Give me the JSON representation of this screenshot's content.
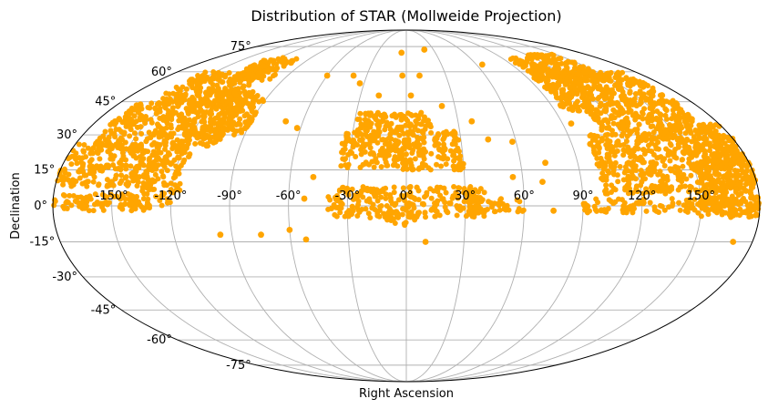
{
  "chart_data": {
    "type": "scatter",
    "projection": "mollweide",
    "title": "Distribution of STAR (Mollweide Projection)",
    "xlabel": "Right Ascension",
    "ylabel": "Declination",
    "xlim": [
      -180,
      180
    ],
    "ylim": [
      -90,
      90
    ],
    "grid": true,
    "marker_color": "#FFA500",
    "x_ticks": [
      "-150°",
      "-120°",
      "-90°",
      "-60°",
      "-30°",
      "0°",
      "30°",
      "60°",
      "90°",
      "120°",
      "150°"
    ],
    "x_tick_values": [
      -150,
      -120,
      -90,
      -60,
      -30,
      0,
      30,
      60,
      90,
      120,
      150
    ],
    "y_ticks": [
      "-75°",
      "-60°",
      "-45°",
      "-30°",
      "-15°",
      "0°",
      "15°",
      "30°",
      "45°",
      "60°",
      "75°"
    ],
    "y_tick_values": [
      -75,
      -60,
      -45,
      -30,
      -15,
      0,
      15,
      30,
      45,
      60,
      75
    ],
    "series": [
      {
        "regions": [
          {
            "ra": [
              -180,
              -120
            ],
            "dec": [
              -2,
              5
            ]
          },
          {
            "ra": [
              -180,
              -130
            ],
            "dec": [
              8,
              26
            ]
          },
          {
            "ra": [
              -170,
              -100
            ],
            "dec": [
              25,
              45
            ]
          },
          {
            "ra": [
              -160,
              -110
            ],
            "dec": [
              44,
              60
            ]
          },
          {
            "ra": [
              -130,
              -100
            ],
            "dec": [
              55,
              68
            ]
          },
          {
            "ra": [
              -135,
              -115
            ],
            "dec": [
              5,
              25
            ]
          },
          {
            "ra": [
              -122,
              -102
            ],
            "dec": [
              28,
              50
            ]
          },
          {
            "ra": [
              -105,
              -90
            ],
            "dec": [
              30,
              48
            ]
          },
          {
            "ra": [
              -35,
              30
            ],
            "dec": [
              15,
              32
            ]
          },
          {
            "ra": [
              -30,
              15
            ],
            "dec": [
              32,
              40
            ]
          },
          {
            "ra": [
              -40,
              40
            ],
            "dec": [
              -5,
              8
            ]
          },
          {
            "ra": [
              -10,
              5
            ],
            "dec": [
              -8,
              -2
            ]
          },
          {
            "ra": [
              30,
              60
            ],
            "dec": [
              -3,
              3
            ]
          },
          {
            "ra": [
              90,
              180
            ],
            "dec": [
              -3,
              3
            ]
          },
          {
            "ra": [
              100,
              180
            ],
            "dec": [
              5,
              30
            ]
          },
          {
            "ra": [
              110,
              170
            ],
            "dec": [
              30,
              60
            ]
          },
          {
            "ra": [
              120,
              150
            ],
            "dec": [
              55,
              70
            ]
          },
          {
            "ra": [
              95,
              118
            ],
            "dec": [
              40,
              68
            ]
          },
          {
            "ra": [
              150,
              180
            ],
            "dec": [
              -5,
              35
            ]
          }
        ],
        "points": [
          {
            "ra": -75,
            "dec": -12
          },
          {
            "ra": -96,
            "dec": -12
          },
          {
            "ra": 3,
            "dec": 48
          },
          {
            "ra": 10,
            "dec": 58
          },
          {
            "ra": 22,
            "dec": 43
          },
          {
            "ra": -18,
            "dec": 48
          },
          {
            "ra": 38,
            "dec": 36
          },
          {
            "ra": 45,
            "dec": 28
          },
          {
            "ra": 55,
            "dec": 12
          },
          {
            "ra": 58,
            "dec": 27
          },
          {
            "ra": 73,
            "dec": 18
          },
          {
            "ra": 70,
            "dec": 10
          },
          {
            "ra": -62,
            "dec": 33
          },
          {
            "ra": -70,
            "dec": 36
          },
          {
            "ra": -48,
            "dec": 12
          },
          {
            "ra": -60,
            "dec": -10
          },
          {
            "ra": -52,
            "dec": -14
          },
          {
            "ra": -52,
            "dec": 3
          },
          {
            "ra": 10,
            "dec": -15
          },
          {
            "ra": 170,
            "dec": -15
          },
          {
            "ra": 162,
            "dec": 36
          },
          {
            "ra": -3,
            "dec": 58
          },
          {
            "ra": -5,
            "dec": 71
          },
          {
            "ra": 20,
            "dec": 73
          },
          {
            "ra": -60,
            "dec": 58
          },
          {
            "ra": -40,
            "dec": 58
          },
          {
            "ra": -33,
            "dec": 54
          },
          {
            "ra": 65,
            "dec": 64
          },
          {
            "ra": 95,
            "dec": 35
          },
          {
            "ra": 100,
            "dec": 26
          },
          {
            "ra": 75,
            "dec": -2
          },
          {
            "ra": 92,
            "dec": 0
          }
        ]
      }
    ]
  }
}
